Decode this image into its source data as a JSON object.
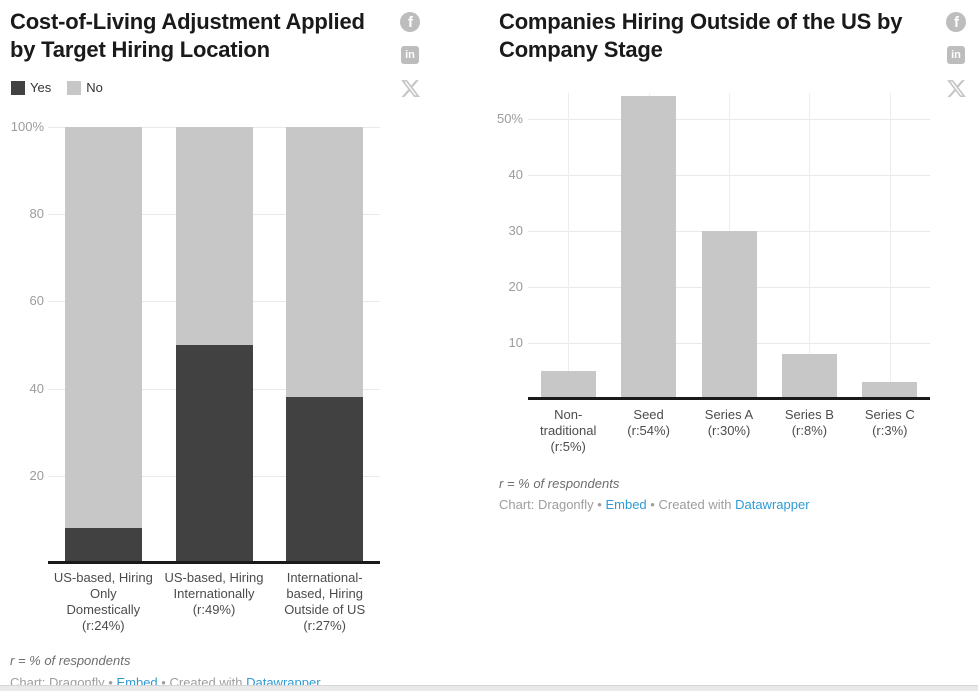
{
  "charts": [
    {
      "title": "Cost-of-Living Adjustment Applied\nby Target Hiring Location"
    },
    {
      "title": "Companies Hiring Outside of the US by\nCompany Stage"
    }
  ],
  "byline": {
    "credit": "Chart: Dragonfly",
    "separator": "•",
    "embed_link": "Embed",
    "created_with": "Created with",
    "datawrapper_link": "Datawrapper"
  },
  "social": {
    "facebook_label": "f",
    "linkedin_label": "in"
  },
  "chart_data": [
    {
      "type": "bar",
      "variant": "100%-stacked-column",
      "title": "Cost-of-Living Adjustment Applied by Target Hiring Location",
      "categories": [
        "US-based, Hiring Only Domestically (r:24%)",
        "US-based, Hiring Internationally (r:49%)",
        "International-based, Hiring Outside of US (r:27%)"
      ],
      "category_label_lines": [
        [
          "US-based, Hiring",
          "Only",
          "Domestically",
          "(r:24%)"
        ],
        [
          "US-based, Hiring",
          "Internationally",
          "(r:49%)"
        ],
        [
          "International-",
          "based, Hiring",
          "Outside of US",
          "(r:27%)"
        ]
      ],
      "series": [
        {
          "name": "Yes",
          "color": "#414141",
          "values": [
            8,
            50,
            38
          ]
        },
        {
          "name": "No",
          "color": "#c7c7c7",
          "values": [
            92,
            50,
            62
          ]
        }
      ],
      "ylim": [
        0,
        100
      ],
      "yticks": [
        {
          "value": 100,
          "label": "100%"
        },
        {
          "value": 80,
          "label": "80"
        },
        {
          "value": 60,
          "label": "60"
        },
        {
          "value": 40,
          "label": "40"
        },
        {
          "value": 20,
          "label": "20"
        }
      ],
      "grid": "horizontal",
      "legend_position": "top-left",
      "footnote": "r = % of respondents"
    },
    {
      "type": "bar",
      "variant": "column",
      "title": "Companies Hiring Outside of the US by Company Stage",
      "categories": [
        "Non-traditional (r:5%)",
        "Seed (r:54%)",
        "Series A (r:30%)",
        "Series B (r:8%)",
        "Series C (r:3%)"
      ],
      "category_label_lines": [
        [
          "Non-",
          "traditional",
          "(r:5%)"
        ],
        [
          "Seed",
          "(r:54%)"
        ],
        [
          "Series A",
          "(r:30%)"
        ],
        [
          "Series B",
          "(r:8%)"
        ],
        [
          "Series C",
          "(r:3%)"
        ]
      ],
      "values": [
        5,
        54,
        30,
        8,
        3
      ],
      "bar_color": "#c7c7c7",
      "ylim": [
        0,
        54.6
      ],
      "yticks": [
        {
          "value": 50,
          "label": "50%"
        },
        {
          "value": 40,
          "label": "40"
        },
        {
          "value": 30,
          "label": "30"
        },
        {
          "value": 20,
          "label": "20"
        },
        {
          "value": 10,
          "label": "10"
        }
      ],
      "grid": "horizontal+vertical",
      "legend_position": "none",
      "footnote": "r = % of respondents"
    }
  ],
  "colors": {
    "title": "#1a1a1a",
    "axis_tick": "#9c9c9c",
    "category_label": "#4c4c4c",
    "gridline": "#e9e9e9",
    "baseline": "#1a1a1a",
    "footnote": "#6d6d6d",
    "byline": "#9e9e9e",
    "link": "#2f9bd4",
    "icon_gray": "#bdbdbd",
    "dark_bar": "#414141",
    "light_bar": "#c7c7c7"
  }
}
